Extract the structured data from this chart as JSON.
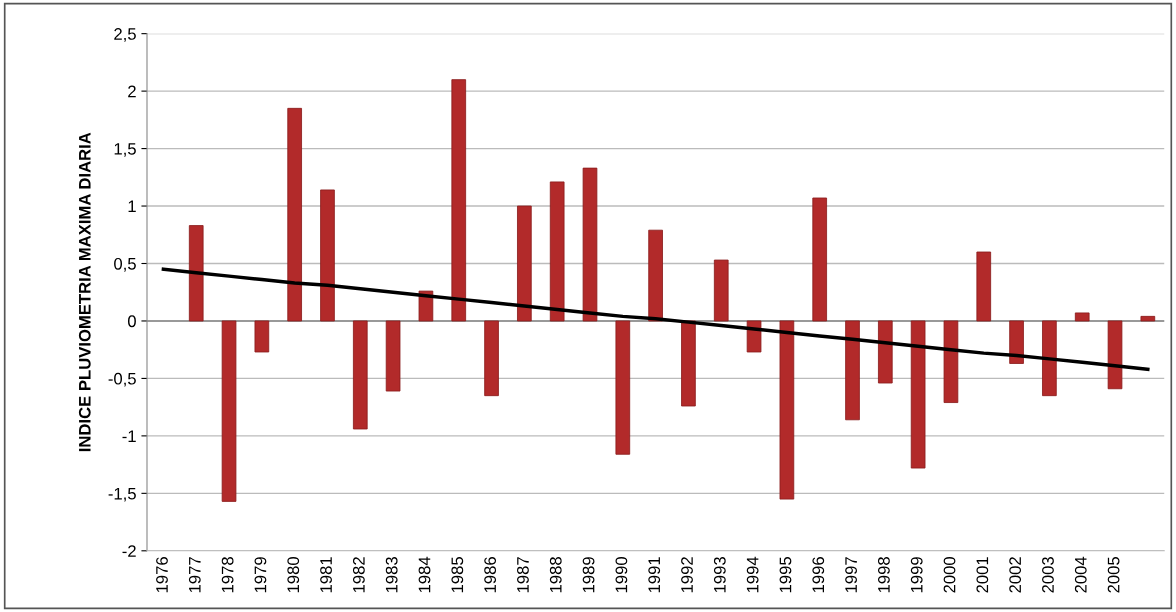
{
  "chart_data": {
    "type": "bar",
    "ylabel": "INDICE PLUVIOMETRIA MAXIMA DIARIA",
    "categories": [
      "1976",
      "1977",
      "1978",
      "1979",
      "1980",
      "1981",
      "1982",
      "1983",
      "1984",
      "1985",
      "1986",
      "1987",
      "1988",
      "1989",
      "1990",
      "1991",
      "1992",
      "1993",
      "1994",
      "1995",
      "1996",
      "1997",
      "1998",
      "1999",
      "2000",
      "2001",
      "2002",
      "2003",
      "2004",
      "2005",
      null
    ],
    "series": [
      {
        "color": "#b22a2a",
        "values": [
          null,
          0.83,
          -1.57,
          -0.27,
          1.85,
          1.14,
          -0.94,
          -0.61,
          0.26,
          2.1,
          -0.65,
          1.0,
          1.21,
          1.33,
          -1.16,
          0.79,
          -0.74,
          0.53,
          -0.27,
          -1.55,
          1.07,
          -0.86,
          -0.54,
          -1.28,
          -0.71,
          0.6,
          -0.37,
          -0.65,
          0.07,
          -0.59,
          0.04
        ]
      },
      {
        "type": "line",
        "color": "#000000",
        "values": [
          0.45,
          0.42,
          0.39,
          0.36,
          0.33,
          0.31,
          0.28,
          0.25,
          0.22,
          0.19,
          0.16,
          0.13,
          0.1,
          0.07,
          0.04,
          0.02,
          -0.01,
          -0.04,
          -0.07,
          -0.1,
          -0.13,
          -0.16,
          -0.19,
          -0.22,
          -0.25,
          -0.28,
          -0.3,
          -0.33,
          -0.36,
          -0.39,
          -0.42
        ]
      }
    ],
    "ylim": [
      -2,
      2.5
    ],
    "yticks": [
      {
        "value": -2,
        "label": "-2"
      },
      {
        "value": -1.5,
        "label": "-1,5"
      },
      {
        "value": -1,
        "label": "-1"
      },
      {
        "value": -0.5,
        "label": "-0,5"
      },
      {
        "value": 0,
        "label": "0"
      },
      {
        "value": 0.5,
        "label": "0,5"
      },
      {
        "value": 1,
        "label": "1"
      },
      {
        "value": 1.5,
        "label": "1,5"
      },
      {
        "value": 2,
        "label": "2"
      },
      {
        "value": 2.5,
        "label": "2,5"
      }
    ],
    "grid": "y"
  }
}
